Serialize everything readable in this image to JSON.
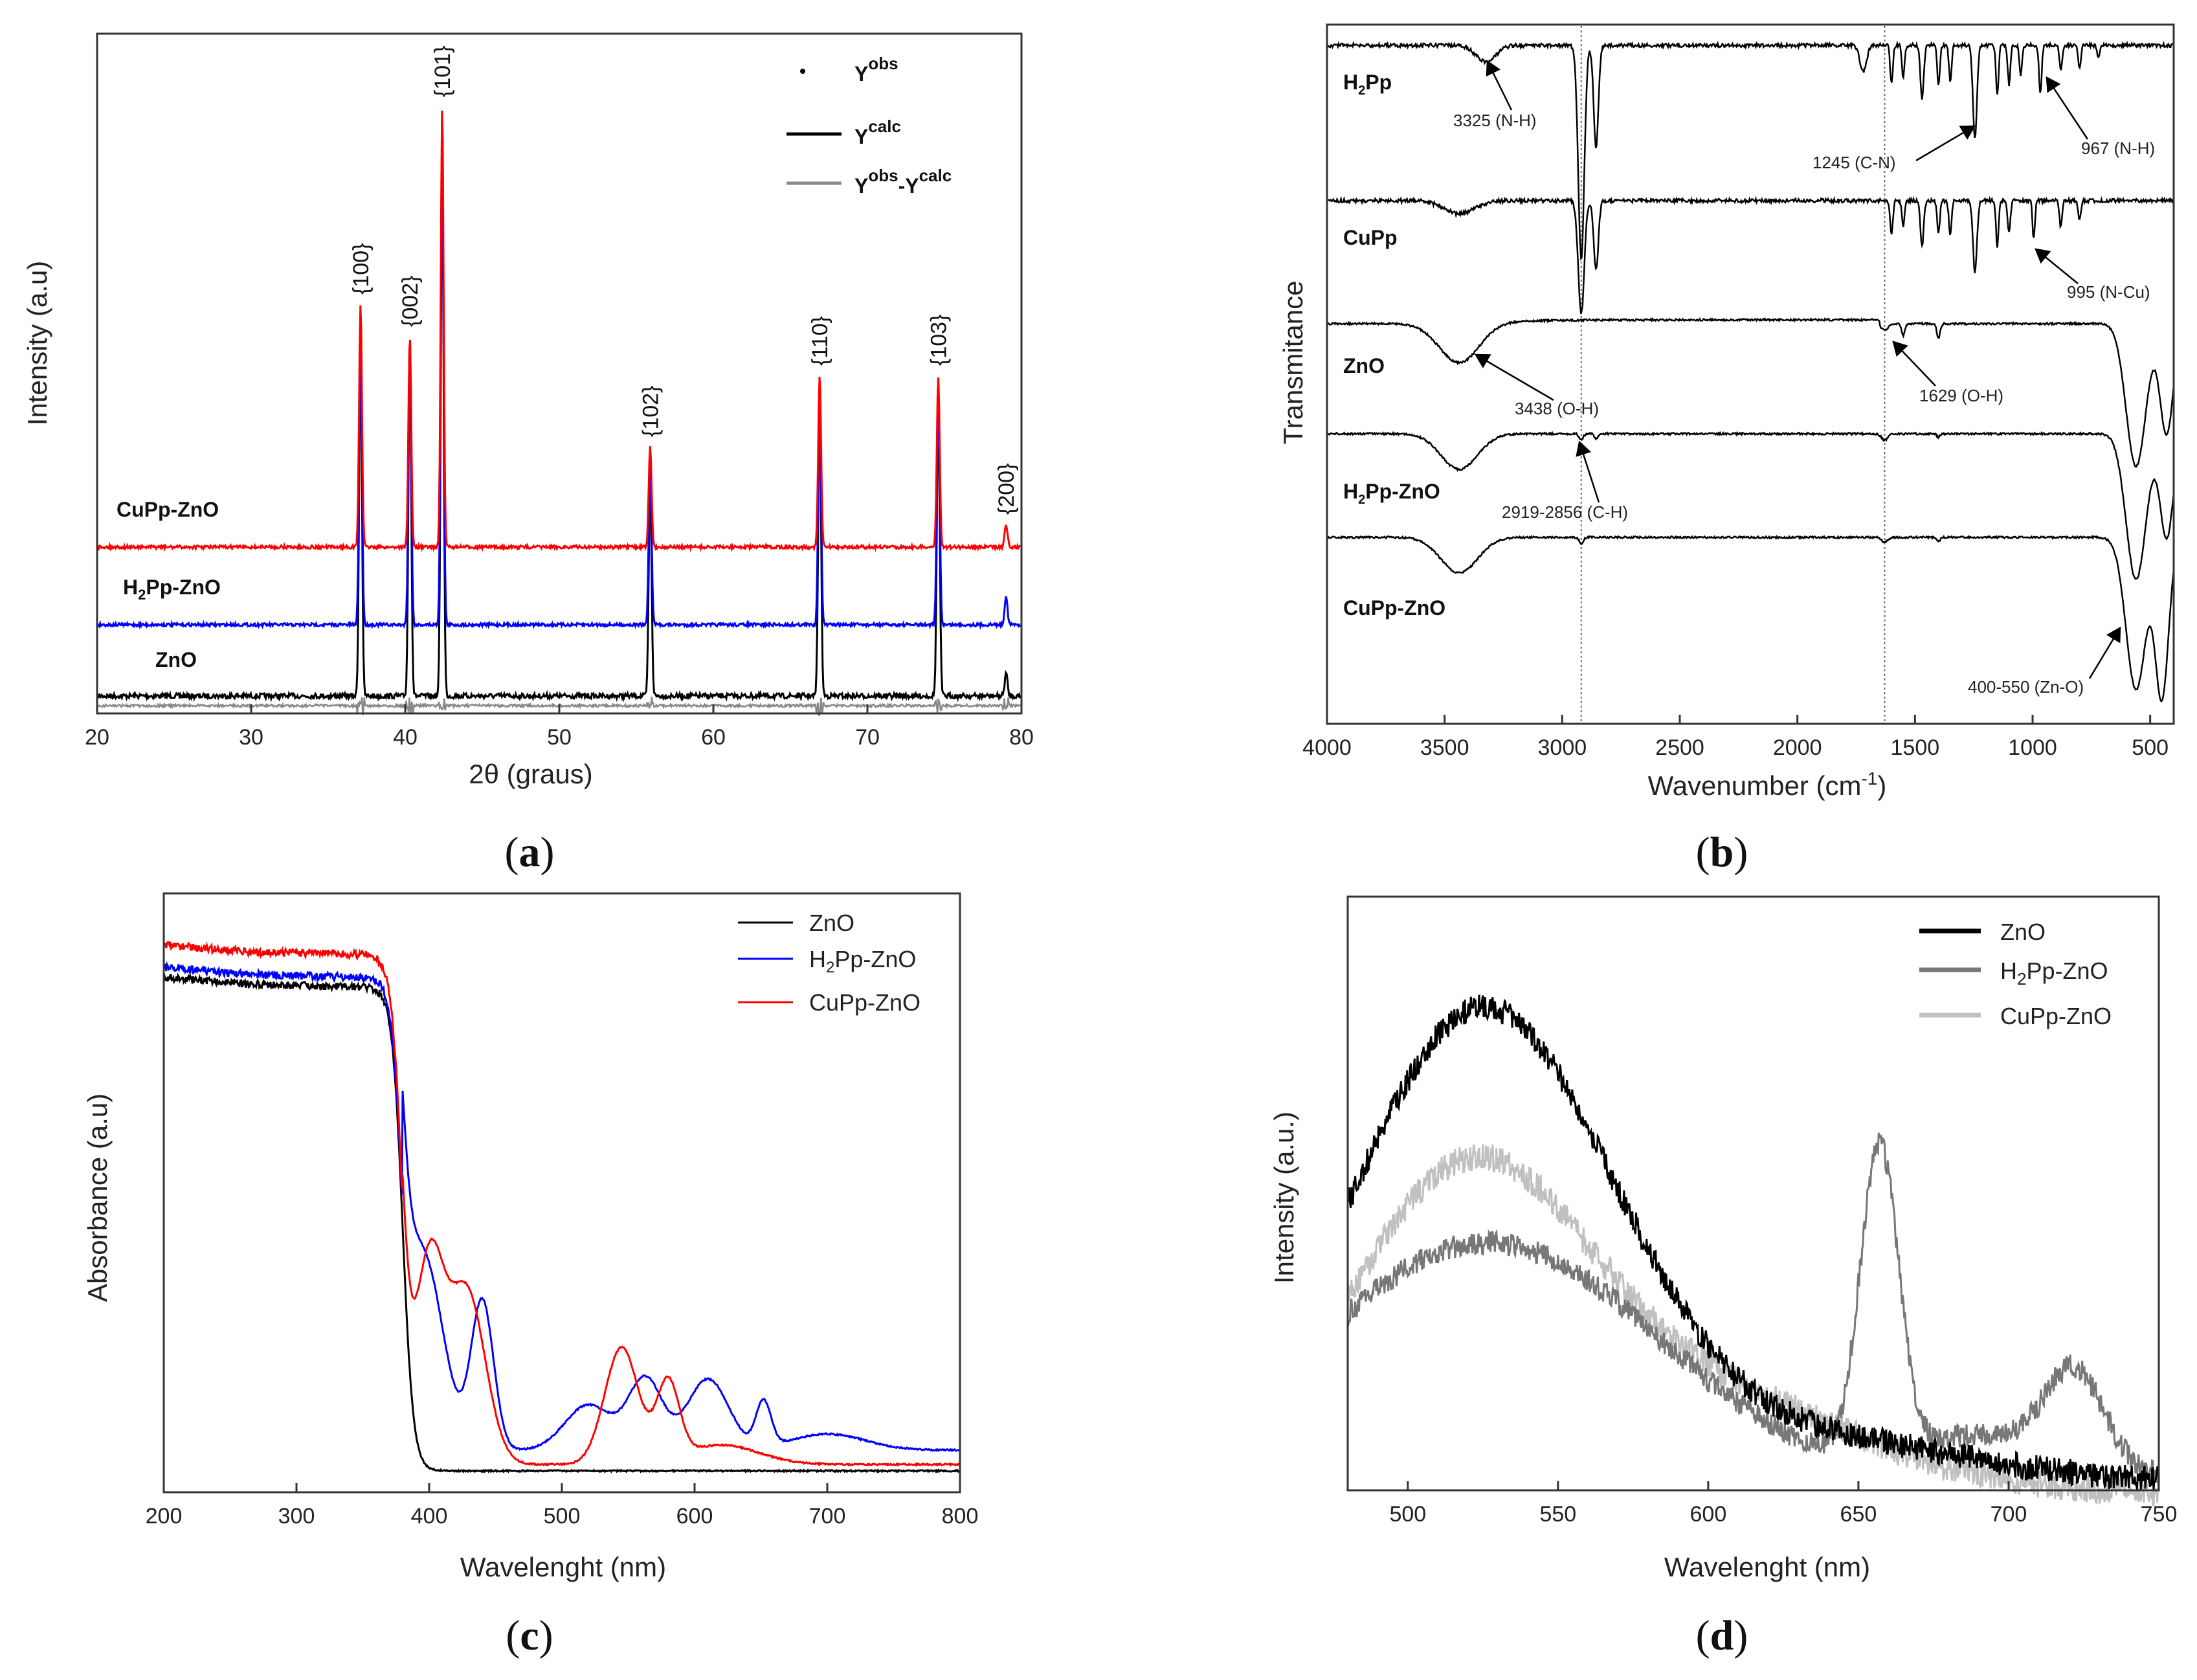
{
  "chart_data": [
    {
      "panel": "(a)",
      "panel_letter": "a",
      "type": "line",
      "xlabel": "2θ (graus)",
      "ylabel": "Intensity (a.u)",
      "xlim": [
        20,
        80
      ],
      "xticks": [
        "20",
        "30",
        "40",
        "50",
        "60",
        "70",
        "80"
      ],
      "legend": [
        {
          "label": "Y",
          "sup": "obs",
          "style": "dots"
        },
        {
          "label": "Y",
          "sup": "calc",
          "style": "black-line"
        },
        {
          "label": "Y",
          "sup": "obs",
          "mid": "-Y",
          "sup2": "calc",
          "style": "gray-line"
        }
      ],
      "peaks": [
        {
          "label": "{100}",
          "x": 37.1,
          "height": 0.57
        },
        {
          "label": "{002}",
          "x": 40.3,
          "height": 0.49
        },
        {
          "label": "{101}",
          "x": 42.4,
          "height": 1.0
        },
        {
          "label": "{102}",
          "x": 55.9,
          "height": 0.24
        },
        {
          "label": "{110}",
          "x": 66.9,
          "height": 0.4
        },
        {
          "label": "{103}",
          "x": 74.6,
          "height": 0.4
        },
        {
          "label": "{200}",
          "x": 79.0,
          "height": 0.05
        }
      ],
      "series": [
        {
          "name": "CuPp-ZnO",
          "color": "#ff0000",
          "offset": 0.27
        },
        {
          "name": "H2Pp-ZnO",
          "label_main": "H",
          "label_sub": "2",
          "label_rest": "Pp-ZnO",
          "color": "#0000ff",
          "offset": 0.14
        },
        {
          "name": "ZnO",
          "color": "#000000",
          "offset": 0.0
        }
      ]
    },
    {
      "panel": "(b)",
      "panel_letter": "b",
      "type": "line",
      "xlabel": "Wavenumber (cm",
      "xlabel_sup": "-1",
      "xlabel_tail": ")",
      "ylabel": "Transmitance",
      "xlim": [
        4000,
        400
      ],
      "xticks": [
        "4000",
        "3500",
        "3000",
        "2500",
        "2000",
        "1500",
        "1000",
        "500"
      ],
      "series": [
        {
          "name": "H2Pp",
          "label_main": "H",
          "label_sub": "2",
          "label_rest": "Pp"
        },
        {
          "name": "CuPp",
          "label_main": "CuPp",
          "label_sub": "",
          "label_rest": ""
        },
        {
          "name": "ZnO",
          "label_main": "ZnO",
          "label_sub": "",
          "label_rest": ""
        },
        {
          "name": "H2Pp-ZnO",
          "label_main": "H",
          "label_sub": "2",
          "label_rest": "Pp-ZnO"
        },
        {
          "name": "CuPp-ZnO",
          "label_main": "CuPp-ZnO",
          "label_sub": "",
          "label_rest": ""
        }
      ],
      "annotations": [
        "3325 (N-H)",
        "1245 (C-N)",
        "967 (N-H)",
        "995 (N-Cu)",
        "3438 (O-H)",
        "1629 (O-H)",
        "2919-2856 (C-H)",
        "400-550 (Zn-O)"
      ],
      "vlines": [
        2919,
        1629
      ]
    },
    {
      "panel": "(c)",
      "panel_letter": "c",
      "type": "line",
      "xlabel": "Wavelenght (nm)",
      "ylabel": "Absorbance (a.u)",
      "xlim": [
        200,
        800
      ],
      "xticks": [
        "200",
        "300",
        "400",
        "500",
        "600",
        "700",
        "800"
      ],
      "series": [
        {
          "name": "ZnO",
          "color": "#000000"
        },
        {
          "name": "H2Pp-ZnO",
          "label_main": "H",
          "label_sub": "2",
          "label_rest": "Pp-ZnO",
          "color": "#0000ff"
        },
        {
          "name": "CuPp-ZnO",
          "color": "#ff0000"
        }
      ]
    },
    {
      "panel": "(d)",
      "panel_letter": "d",
      "type": "line",
      "xlabel": "Wavelenght (nm)",
      "ylabel": "Intensity (a.u.)",
      "xlim": [
        480,
        750
      ],
      "xticks": [
        "500",
        "550",
        "600",
        "650",
        "700",
        "750"
      ],
      "series": [
        {
          "name": "ZnO",
          "color": "#000000"
        },
        {
          "name": "H2Pp-ZnO",
          "label_main": "H",
          "label_sub": "2",
          "label_rest": "Pp-ZnO",
          "color": "#777777"
        },
        {
          "name": "CuPp-ZnO",
          "color": "#c0c0c0"
        }
      ]
    }
  ]
}
